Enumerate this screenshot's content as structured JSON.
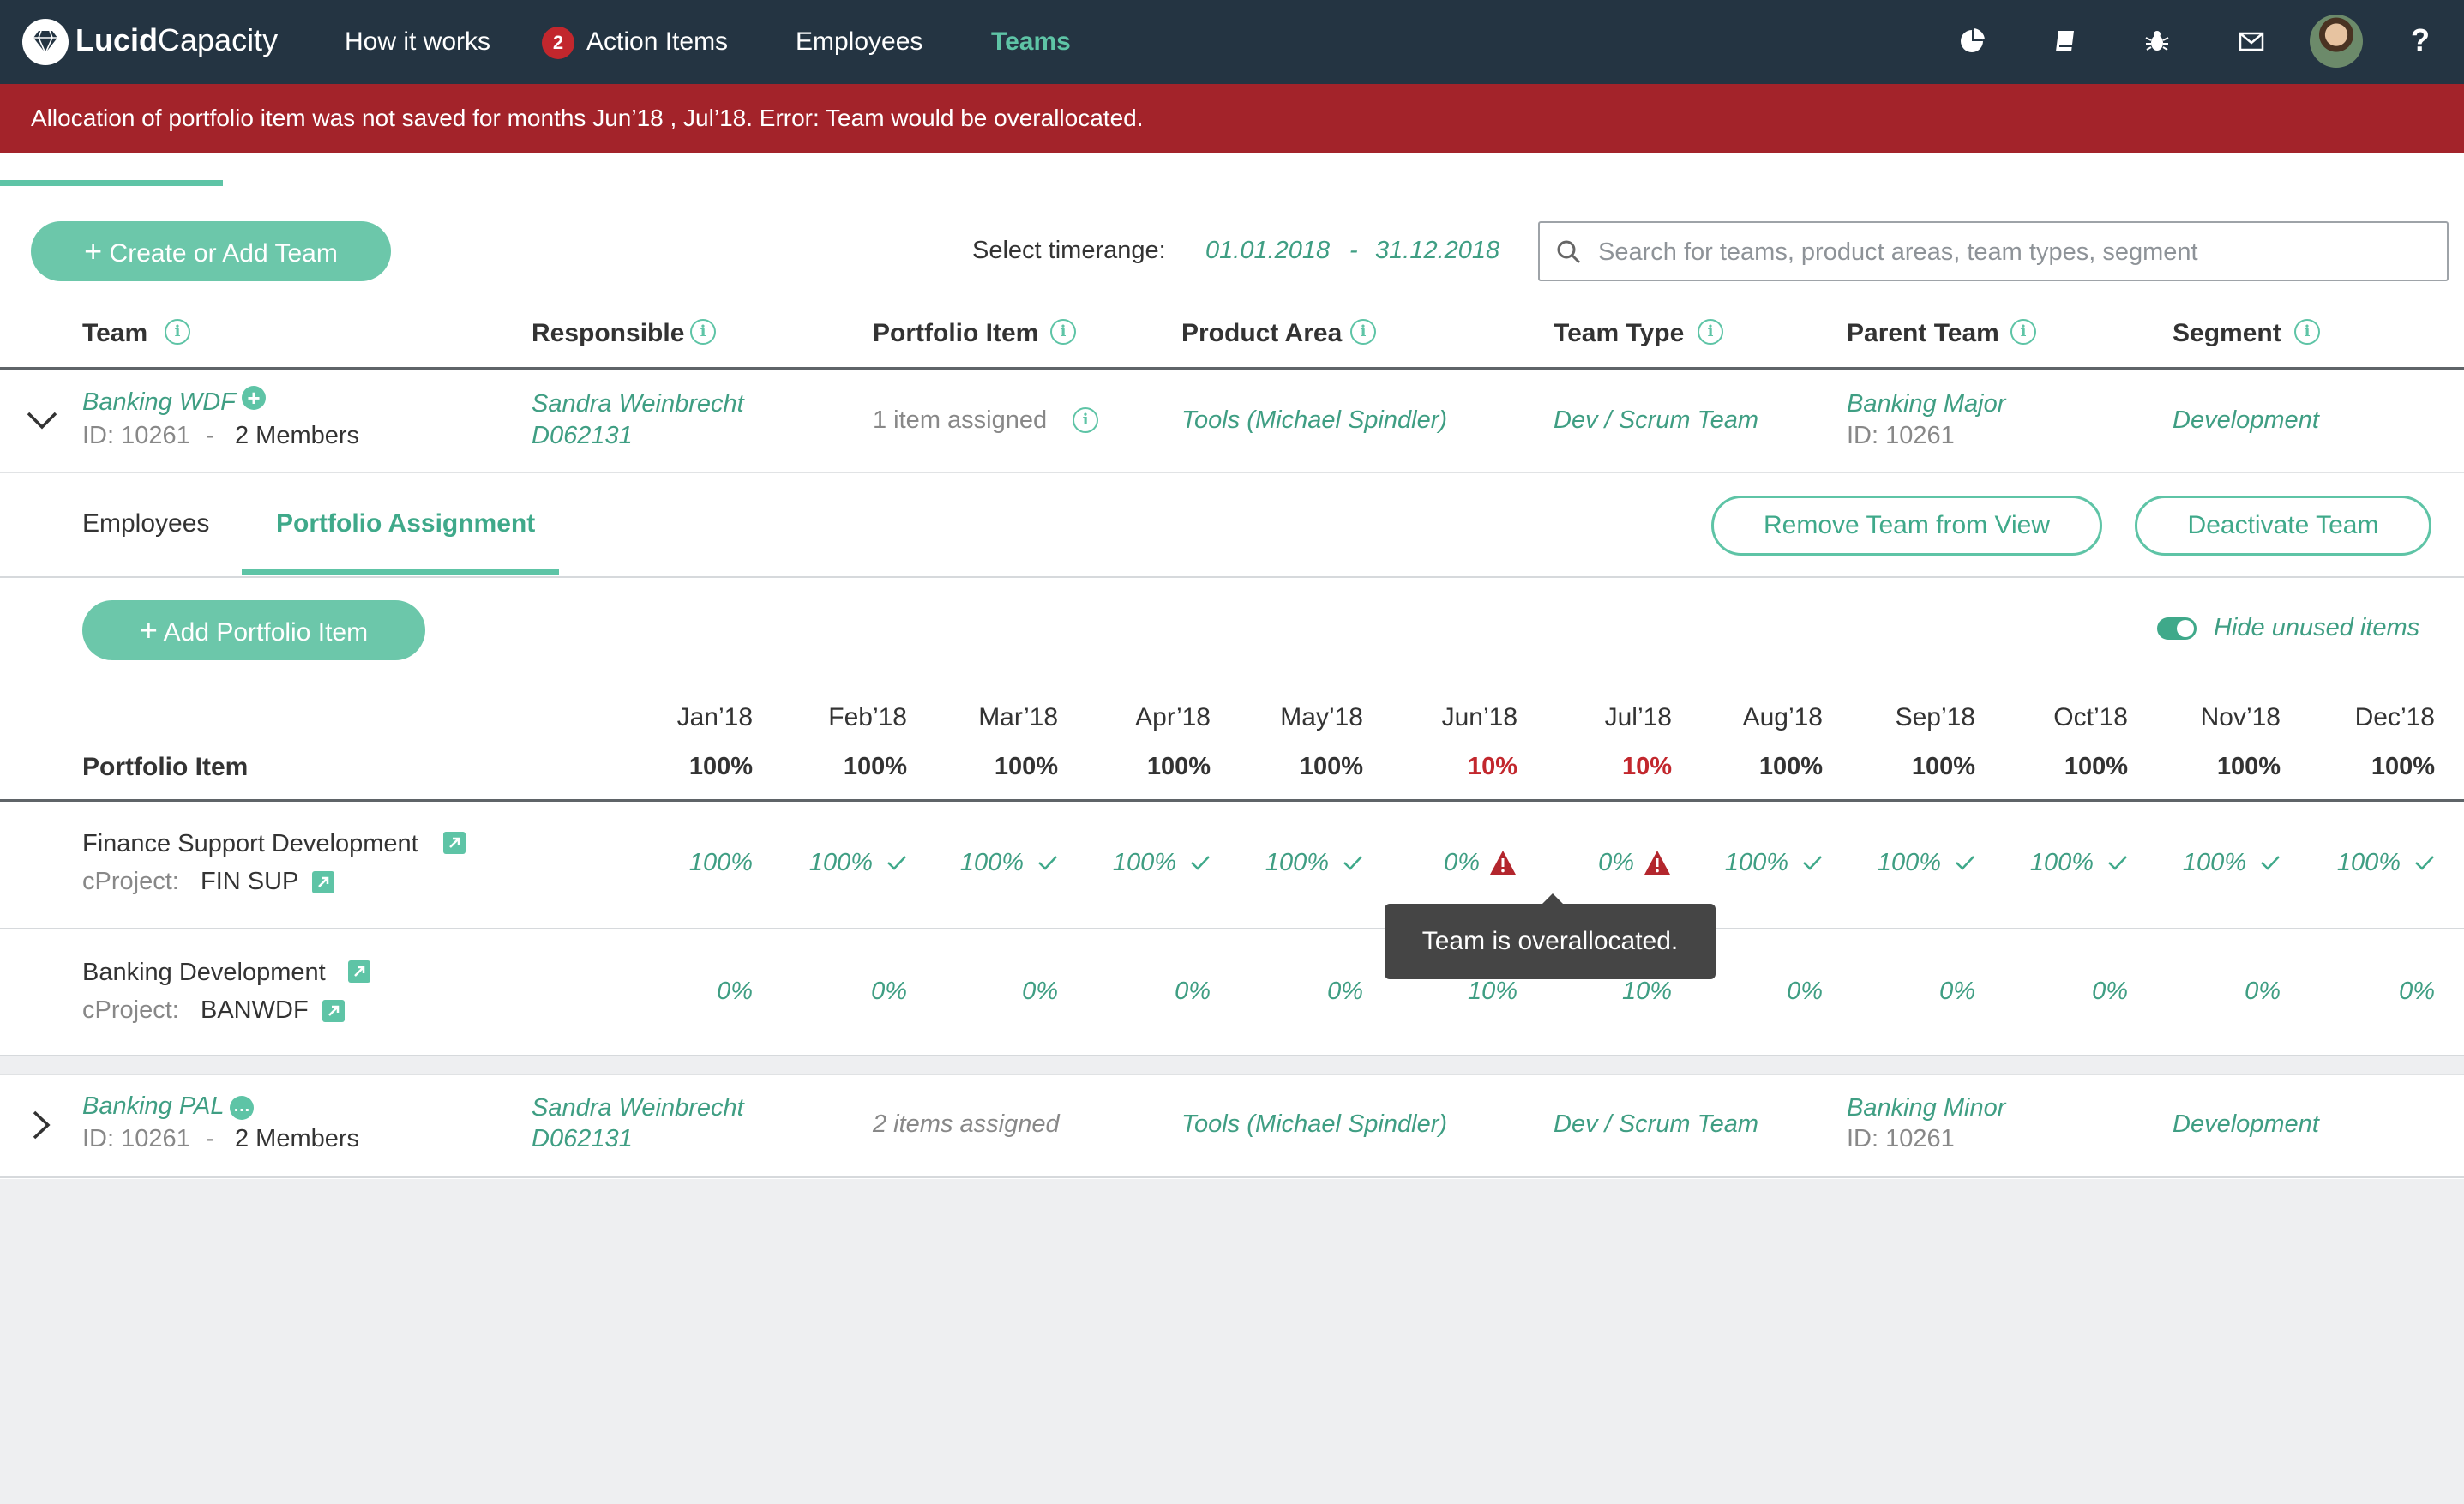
{
  "app": {
    "brand_bold": "Lucid",
    "brand_light": "Capacity"
  },
  "nav": {
    "how_it_works": "How it works",
    "action_items": "Action Items",
    "action_count": "2",
    "employees": "Employees",
    "teams": "Teams"
  },
  "error": {
    "message": "Allocation of portfolio item was not saved for months Jun’18 , Jul’18. Error: Team would be overallocated."
  },
  "toolbar": {
    "create_team": "Create or Add Team",
    "timerange_label": "Select timerange:",
    "date_from": "01.01.2018",
    "date_sep": "-",
    "date_to": "31.12.2018",
    "search_placeholder": "Search for teams, product areas, team types, segment"
  },
  "columns": {
    "team": "Team",
    "responsible": "Responsible",
    "portfolio_item": "Portfolio Item",
    "product_area": "Product Area",
    "team_type": "Team Type",
    "parent_team": "Parent Team",
    "segment": "Segment"
  },
  "teams": [
    {
      "name": "Banking WDF",
      "id": "ID: 10261",
      "dash": "-",
      "members": "2 Members",
      "responsible_name": "Sandra Weinbrecht",
      "responsible_id": "D062131",
      "portfolio": "1 item assigned",
      "product_area": "Tools (Michael Spindler)",
      "team_type": "Dev / Scrum Team",
      "parent_name": "Banking Major",
      "parent_id": "ID: 10261",
      "segment": "Development"
    },
    {
      "name": "Banking PAL",
      "id": "ID: 10261",
      "dash": "-",
      "members": "2 Members",
      "responsible_name": "Sandra Weinbrecht",
      "responsible_id": "D062131",
      "portfolio": "2 items assigned",
      "product_area": "Tools (Michael Spindler)",
      "team_type": "Dev / Scrum Team",
      "parent_name": "Banking Minor",
      "parent_id": "ID: 10261",
      "segment": "Development"
    }
  ],
  "detail": {
    "tab_employees": "Employees",
    "tab_portfolio": "Portfolio Assignment",
    "remove_team": "Remove Team from View",
    "deactivate_team": "Deactivate Team",
    "add_portfolio": "Add Portfolio Item",
    "hide_unused": "Hide unused items",
    "portfolio_header": "Portfolio Item",
    "months": [
      "Jan’18",
      "Feb’18",
      "Mar’18",
      "Apr’18",
      "May’18",
      "Jun’18",
      "Jul’18",
      "Aug’18",
      "Sep’18",
      "Oct’18",
      "Nov’18",
      "Dec’18"
    ],
    "totals": [
      "100%",
      "100%",
      "100%",
      "100%",
      "100%",
      "10%",
      "10%",
      "100%",
      "100%",
      "100%",
      "100%",
      "100%"
    ],
    "overallocated_months": [
      5,
      6
    ],
    "rows": [
      {
        "name": "Finance Support Development",
        "cproject_label": "cProject:",
        "cproject": "FIN SUP",
        "values": [
          "100%",
          "100%",
          "100%",
          "100%",
          "100%",
          "0%",
          "0%",
          "100%",
          "100%",
          "100%",
          "100%",
          "100%"
        ],
        "status": [
          "none",
          "ok",
          "ok",
          "ok",
          "ok",
          "warn",
          "warn",
          "ok",
          "ok",
          "ok",
          "ok",
          "ok"
        ]
      },
      {
        "name": "Banking Development",
        "cproject_label": "cProject:",
        "cproject": "BANWDF",
        "values": [
          "0%",
          "0%",
          "0%",
          "0%",
          "0%",
          "10%",
          "10%",
          "0%",
          "0%",
          "0%",
          "0%",
          "0%"
        ]
      }
    ],
    "tooltip": "Team is overallocated."
  }
}
